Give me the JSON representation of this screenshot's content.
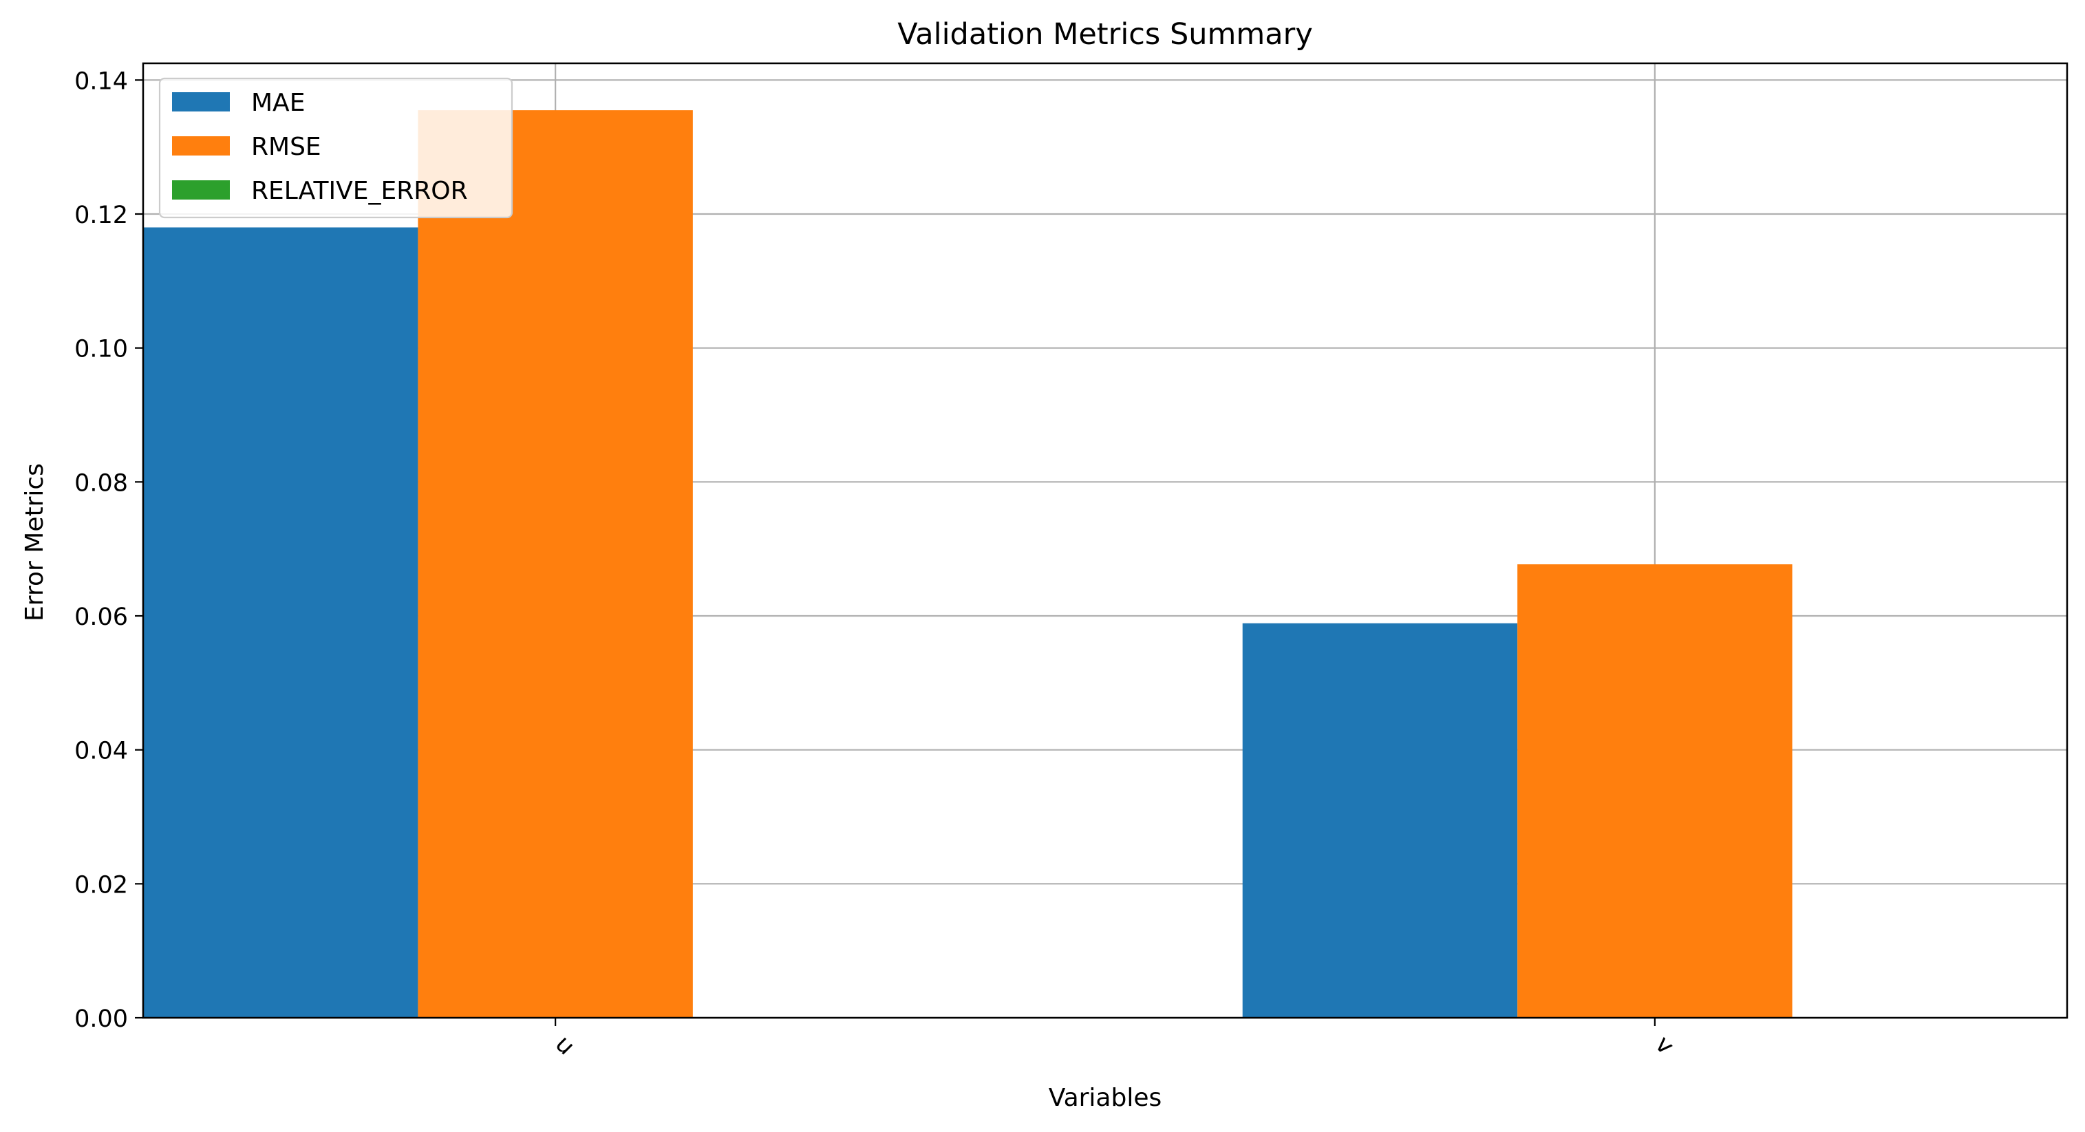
{
  "chart_data": {
    "type": "bar",
    "title": "Validation Metrics Summary",
    "xlabel": "Variables",
    "ylabel": "Error Metrics",
    "categories": [
      "u",
      "v"
    ],
    "series": [
      {
        "name": "MAE",
        "values": [
          0.118,
          0.0589
        ]
      },
      {
        "name": "RMSE",
        "values": [
          0.1355,
          0.0677
        ]
      },
      {
        "name": "RELATIVE_ERROR",
        "values": [
          0,
          0
        ]
      }
    ],
    "ylim": [
      0,
      0.1425
    ],
    "yticks": [
      "0.00",
      "0.02",
      "0.04",
      "0.06",
      "0.08",
      "0.10",
      "0.12",
      "0.14"
    ],
    "grid": true,
    "legend": "top-left",
    "colors": [
      "#1f77b4",
      "#ff7f0e",
      "#2ca02c"
    ]
  }
}
